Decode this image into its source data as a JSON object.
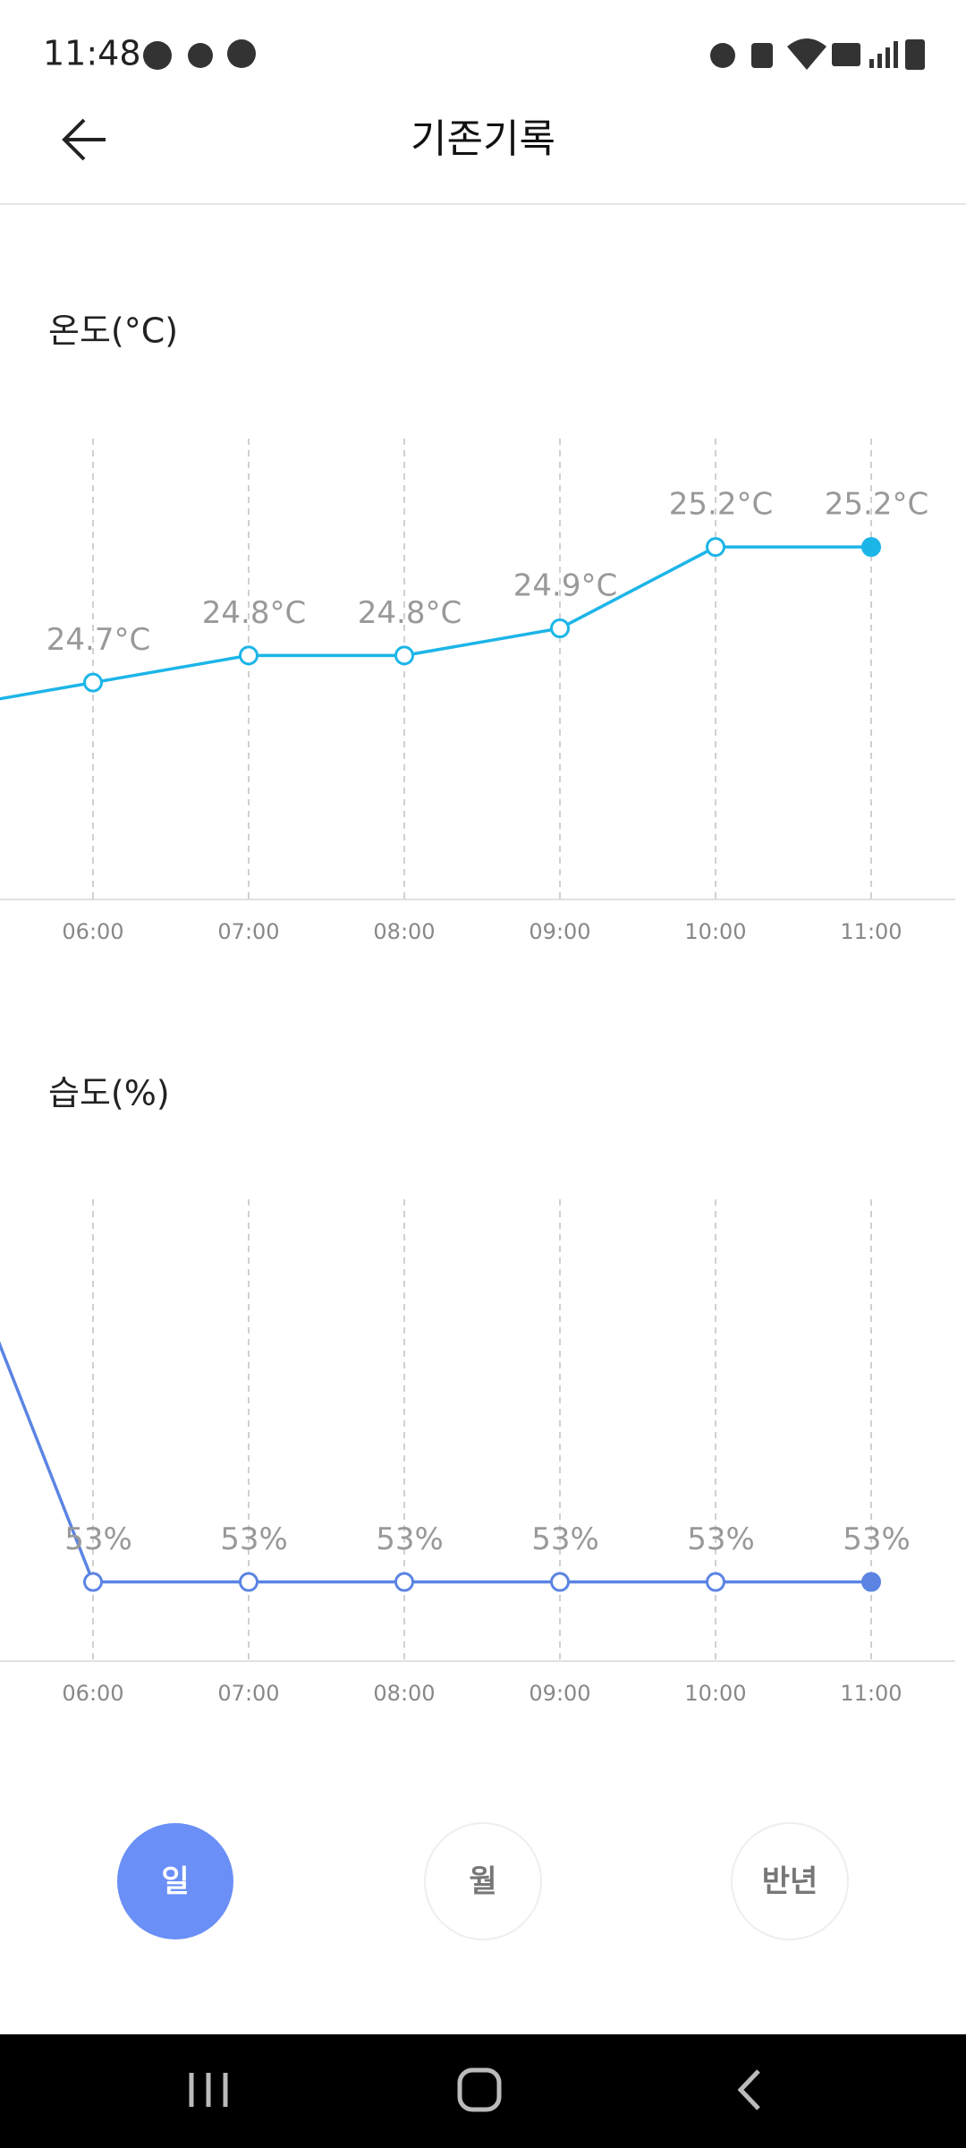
{
  "status_bar": {
    "time": "11:48"
  },
  "header": {
    "title": "기존기록"
  },
  "chart_data": [
    {
      "type": "line",
      "title": "온도(°C)",
      "categories": [
        null,
        "06:00",
        "07:00",
        "08:00",
        "09:00",
        "10:00",
        "11:00"
      ],
      "values": [
        24.6,
        24.7,
        24.8,
        24.8,
        24.9,
        25.2,
        25.2
      ],
      "value_labels": [
        null,
        "24.7°C",
        "24.8°C",
        "24.8°C",
        "24.9°C",
        "25.2°C",
        "25.2°C"
      ],
      "color": "#1cb5e8",
      "ylim": [
        23.9,
        25.6
      ]
    },
    {
      "type": "line",
      "title": "습도(%)",
      "categories": [
        null,
        "06:00",
        "07:00",
        "08:00",
        "09:00",
        "10:00",
        "11:00"
      ],
      "values": [
        68,
        53,
        53,
        53,
        53,
        53,
        53
      ],
      "value_labels": [
        null,
        "53%",
        "53%",
        "53%",
        "53%",
        "53%",
        "53%"
      ],
      "color": "#5b84e3",
      "ylim": [
        50,
        67.5
      ]
    }
  ],
  "tabs": [
    "일",
    "월",
    "반년"
  ]
}
